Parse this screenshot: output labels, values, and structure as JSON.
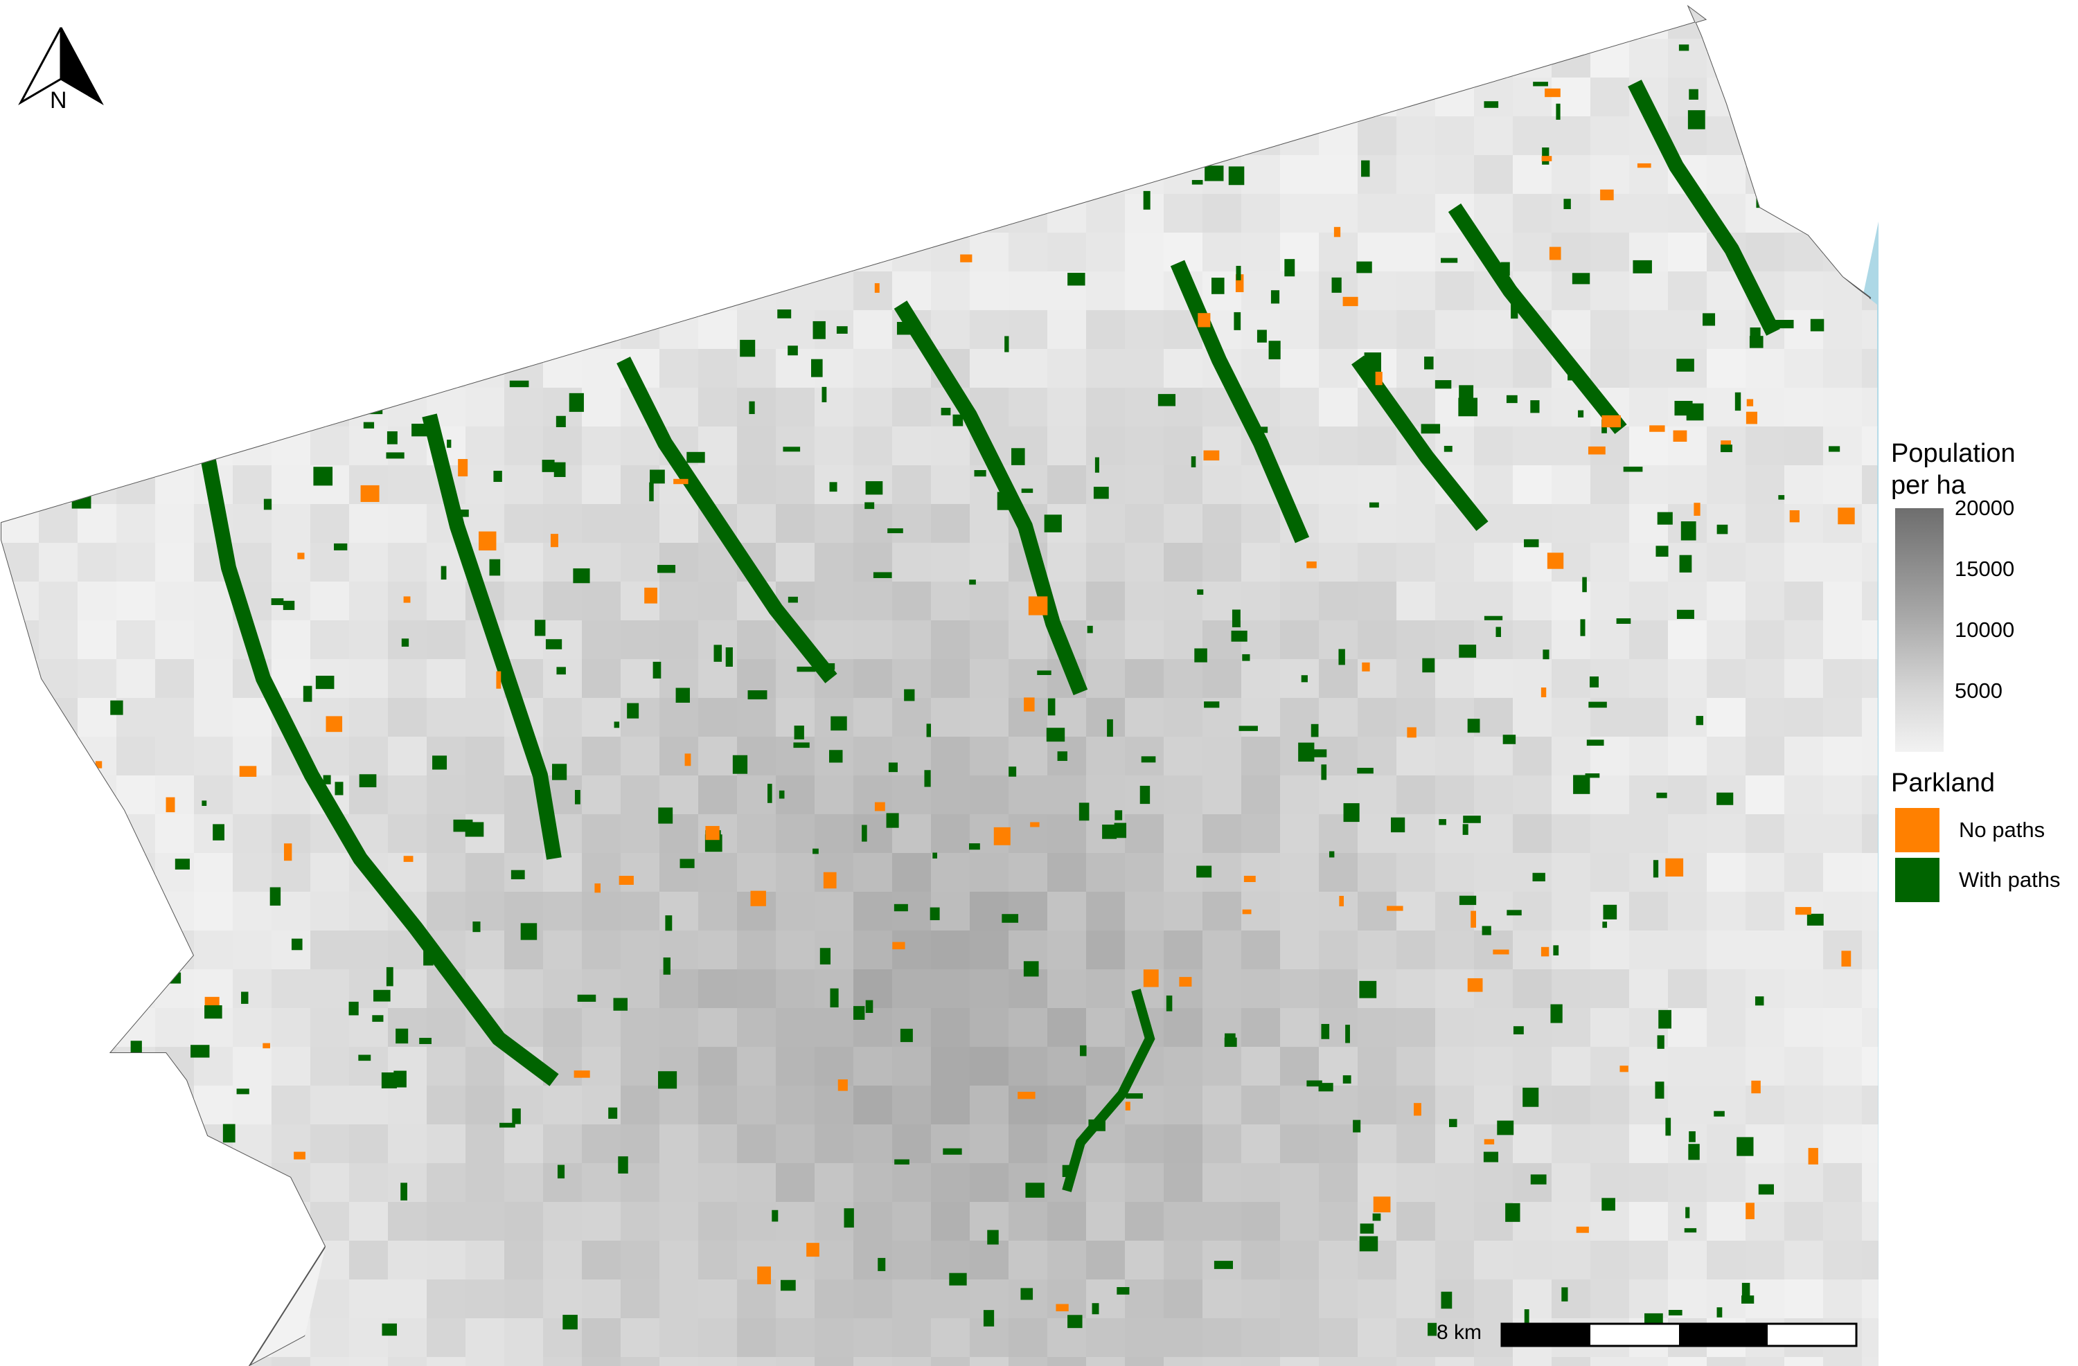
{
  "north_arrow": {
    "label": "N"
  },
  "legend": {
    "population_title": "Population per ha",
    "population_ticks": [
      "20000",
      "15000",
      "10000",
      "5000"
    ],
    "population_values": [
      20000,
      15000,
      10000,
      5000
    ],
    "population_range": [
      0,
      20000
    ],
    "parkland_title": "Parkland",
    "parkland_items": [
      {
        "label": "No paths",
        "color": "#ff8000"
      },
      {
        "label": "With paths",
        "color": "#006400"
      }
    ]
  },
  "scale_bar": {
    "label": "8 km",
    "segments": 4
  },
  "colors": {
    "water": "#add8e6",
    "land_light": "#f2f2f2",
    "land_dark": "#6e6e6e",
    "park_with_paths": "#006400",
    "park_no_paths": "#ff8000"
  }
}
